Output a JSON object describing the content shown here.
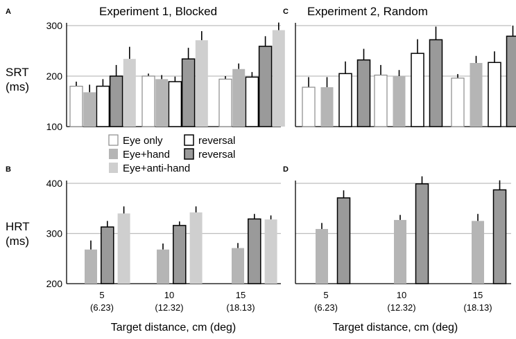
{
  "colors": {
    "eye_only": "#ffffff",
    "eye_only_reversal": "#ffffff",
    "eye_hand": "#b5b5b5",
    "eye_hand_reversal": "#9a9a9a",
    "eye_anti_hand": "#cfcfcf",
    "error_bar": "#000000",
    "grid": "#bdbdbd",
    "axis": "#000000"
  },
  "legend": {
    "items": [
      {
        "key": "eye_only",
        "label": "Eye only"
      },
      {
        "key": "eye_only_reversal",
        "label": "reversal"
      },
      {
        "key": "eye_hand",
        "label": "Eye+hand"
      },
      {
        "key": "eye_hand_reversal",
        "label": "reversal"
      },
      {
        "key": "eye_anti_hand",
        "label": "Eye+anti-hand"
      }
    ]
  },
  "y_labels": {
    "srt": [
      "SRT",
      "(ms)"
    ],
    "hrt": [
      "HRT",
      "(ms)"
    ]
  },
  "x_label": "Target distance, cm (deg)",
  "chart_data": [
    {
      "id": "A",
      "letter": "A",
      "type": "bar",
      "title": "Experiment 1, Blocked",
      "ylim": [
        100,
        300
      ],
      "yticks": [
        100,
        200,
        300
      ],
      "categories": [
        "5",
        "10",
        "15"
      ],
      "category_sublabels": [],
      "series": [
        {
          "key": "eye_only",
          "values": [
            180,
            200,
            194
          ],
          "errors": [
            9,
            5,
            6
          ]
        },
        {
          "key": "eye_hand",
          "values": [
            168,
            194,
            214
          ],
          "errors": [
            15,
            8,
            11
          ]
        },
        {
          "key": "eye_only_reversal",
          "values": [
            180,
            189,
            198
          ],
          "errors": [
            14,
            10,
            10
          ]
        },
        {
          "key": "eye_hand_reversal",
          "values": [
            200,
            234,
            259
          ],
          "errors": [
            22,
            22,
            20
          ]
        },
        {
          "key": "eye_anti_hand",
          "values": [
            234,
            271,
            291
          ],
          "errors": [
            24,
            18,
            15
          ]
        }
      ]
    },
    {
      "id": "C",
      "letter": "C",
      "type": "bar",
      "title": "Experiment 2, Random",
      "ylim": [
        100,
        300
      ],
      "yticks": [
        100,
        200,
        300
      ],
      "categories": [
        "5",
        "10",
        "15"
      ],
      "category_sublabels": [],
      "series": [
        {
          "key": "eye_only",
          "values": [
            178,
            202,
            196
          ],
          "errors": [
            20,
            20,
            8
          ]
        },
        {
          "key": "eye_hand",
          "values": [
            178,
            200,
            226
          ],
          "errors": [
            20,
            12,
            14
          ]
        },
        {
          "key": "eye_only_reversal",
          "values": [
            205,
            245,
            227
          ],
          "errors": [
            24,
            28,
            22
          ]
        },
        {
          "key": "eye_hand_reversal",
          "values": [
            232,
            272,
            279
          ],
          "errors": [
            22,
            26,
            21
          ]
        }
      ]
    },
    {
      "id": "B",
      "letter": "B",
      "type": "bar",
      "title": "",
      "ylim": [
        200,
        400
      ],
      "yticks": [
        200,
        300,
        400
      ],
      "categories": [
        "5",
        "10",
        "15"
      ],
      "category_sublabels": [
        "(6.23)",
        "(12.32)",
        "(18.13)"
      ],
      "series": [
        {
          "key": "eye_hand",
          "values": [
            268,
            268,
            271
          ],
          "errors": [
            18,
            12,
            10
          ]
        },
        {
          "key": "eye_hand_reversal",
          "values": [
            313,
            316,
            329
          ],
          "errors": [
            12,
            8,
            10
          ]
        },
        {
          "key": "eye_anti_hand",
          "values": [
            340,
            342,
            328
          ],
          "errors": [
            14,
            12,
            8
          ]
        }
      ]
    },
    {
      "id": "D",
      "letter": "D",
      "type": "bar",
      "title": "",
      "ylim": [
        200,
        400
      ],
      "yticks": [
        200,
        300,
        400
      ],
      "categories": [
        "5",
        "10",
        "15"
      ],
      "category_sublabels": [
        "(6.23)",
        "(12.32)",
        "(18.13)"
      ],
      "series": [
        {
          "key": "eye_hand",
          "values": [
            309,
            327,
            325
          ],
          "errors": [
            12,
            10,
            14
          ]
        },
        {
          "key": "eye_hand_reversal",
          "values": [
            371,
            399,
            387
          ],
          "errors": [
            15,
            15,
            19
          ]
        }
      ]
    }
  ]
}
